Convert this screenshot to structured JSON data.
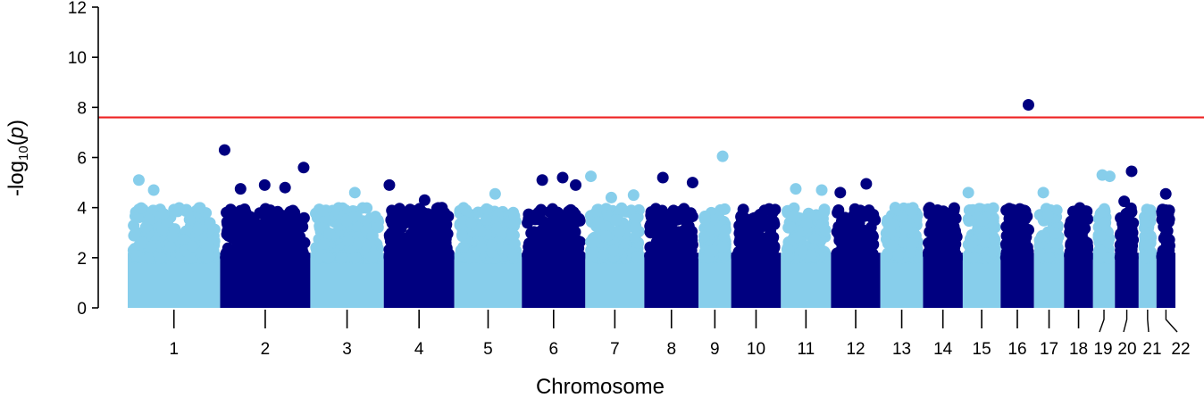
{
  "chart_data": {
    "type": "scatter",
    "title": "",
    "xlabel": "Chromosome",
    "ylabel_prefix": "-log",
    "ylabel_sub": "10",
    "ylabel_var": "p",
    "ylim": [
      0,
      12
    ],
    "yticks": [
      0,
      2,
      4,
      6,
      8,
      10,
      12
    ],
    "ytick_labels": [
      "0",
      "2",
      "4",
      "6",
      "8",
      "10",
      "12"
    ],
    "grid": false,
    "legend": "none",
    "significance_threshold": 7.6,
    "threshold_color": "#ee2222",
    "colors": {
      "odd": "#87ceeb",
      "even": "#000080"
    },
    "chromosomes": [
      {
        "label": "1",
        "start": 0,
        "end": 249
      },
      {
        "label": "2",
        "start": 249,
        "end": 492
      },
      {
        "label": "3",
        "start": 492,
        "end": 690
      },
      {
        "label": "4",
        "start": 690,
        "end": 880
      },
      {
        "label": "5",
        "start": 880,
        "end": 1062
      },
      {
        "label": "6",
        "start": 1062,
        "end": 1233
      },
      {
        "label": "7",
        "start": 1233,
        "end": 1392
      },
      {
        "label": "8",
        "start": 1392,
        "end": 1538
      },
      {
        "label": "9",
        "start": 1538,
        "end": 1626
      },
      {
        "label": "10",
        "start": 1626,
        "end": 1760
      },
      {
        "label": "11",
        "start": 1760,
        "end": 1895
      },
      {
        "label": "12",
        "start": 1895,
        "end": 2028
      },
      {
        "label": "13",
        "start": 2028,
        "end": 2143
      },
      {
        "label": "14",
        "start": 2143,
        "end": 2250
      },
      {
        "label": "15",
        "start": 2250,
        "end": 2352
      },
      {
        "label": "16",
        "start": 2352,
        "end": 2442
      },
      {
        "label": "17",
        "start": 2442,
        "end": 2523
      },
      {
        "label": "18",
        "start": 2523,
        "end": 2601
      },
      {
        "label": "19",
        "start": 2601,
        "end": 2660
      },
      {
        "label": "20",
        "start": 2660,
        "end": 2724
      },
      {
        "label": "21",
        "start": 2724,
        "end": 2772
      },
      {
        "label": "22",
        "start": 2772,
        "end": 2823
      }
    ],
    "top_hits": [
      {
        "chr": "1",
        "pos": 30,
        "value": 5.1
      },
      {
        "chr": "1",
        "pos": 70,
        "value": 4.7
      },
      {
        "chr": "2",
        "pos": 12,
        "value": 6.3
      },
      {
        "chr": "2",
        "pos": 55,
        "value": 4.75
      },
      {
        "chr": "2",
        "pos": 120,
        "value": 4.9
      },
      {
        "chr": "2",
        "pos": 175,
        "value": 4.8
      },
      {
        "chr": "2",
        "pos": 225,
        "value": 5.6
      },
      {
        "chr": "3",
        "pos": 120,
        "value": 4.6
      },
      {
        "chr": "4",
        "pos": 15,
        "value": 4.9
      },
      {
        "chr": "4",
        "pos": 110,
        "value": 4.3
      },
      {
        "chr": "5",
        "pos": 110,
        "value": 4.55
      },
      {
        "chr": "6",
        "pos": 55,
        "value": 5.1
      },
      {
        "chr": "6",
        "pos": 110,
        "value": 5.2
      },
      {
        "chr": "6",
        "pos": 145,
        "value": 4.9
      },
      {
        "chr": "7",
        "pos": 15,
        "value": 5.25
      },
      {
        "chr": "7",
        "pos": 70,
        "value": 4.4
      },
      {
        "chr": "7",
        "pos": 130,
        "value": 4.5
      },
      {
        "chr": "8",
        "pos": 50,
        "value": 5.2
      },
      {
        "chr": "8",
        "pos": 130,
        "value": 5.0
      },
      {
        "chr": "9",
        "pos": 65,
        "value": 6.05
      },
      {
        "chr": "11",
        "pos": 40,
        "value": 4.75
      },
      {
        "chr": "11",
        "pos": 110,
        "value": 4.7
      },
      {
        "chr": "12",
        "pos": 25,
        "value": 4.6
      },
      {
        "chr": "12",
        "pos": 95,
        "value": 4.95
      },
      {
        "chr": "13",
        "pos": 40,
        "value": 4.0
      },
      {
        "chr": "15",
        "pos": 15,
        "value": 4.6
      },
      {
        "chr": "16",
        "pos": 75,
        "value": 8.1
      },
      {
        "chr": "17",
        "pos": 25,
        "value": 4.6
      },
      {
        "chr": "19",
        "pos": 25,
        "value": 5.3
      },
      {
        "chr": "19",
        "pos": 45,
        "value": 5.25
      },
      {
        "chr": "20",
        "pos": 25,
        "value": 4.25
      },
      {
        "chr": "20",
        "pos": 45,
        "value": 5.45
      },
      {
        "chr": "22",
        "pos": 25,
        "value": 4.55
      }
    ]
  }
}
